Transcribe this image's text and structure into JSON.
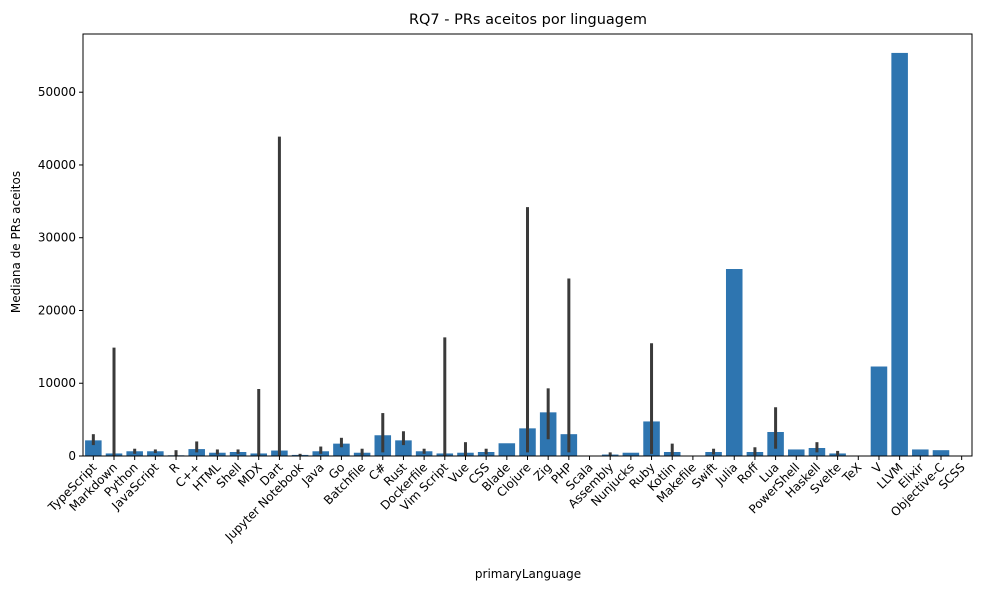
{
  "chart_data": {
    "type": "bar",
    "title": "RQ7 - PRs aceitos por linguagem",
    "xlabel": "primaryLanguage",
    "ylabel": "Mediana de PRs aceitos",
    "ylim": [
      0,
      58000
    ],
    "yticks": [
      0,
      10000,
      20000,
      30000,
      40000,
      50000
    ],
    "bar_color": "#2e75b0",
    "errorbar_color": "#3a3a3a",
    "grid": false,
    "legend": "none",
    "categories": [
      "TypeScript",
      "Markdown",
      "Python",
      "JavaScript",
      "R",
      "C++",
      "HTML",
      "Shell",
      "MDX",
      "Dart",
      "Jupyter Notebook",
      "Java",
      "Go",
      "Batchfile",
      "C#",
      "Rust",
      "Dockerfile",
      "Vim Script",
      "Vue",
      "CSS",
      "Blade",
      "Clojure",
      "Zig",
      "PHP",
      "Scala",
      "Assembly",
      "Nunjucks",
      "Ruby",
      "Kotlin",
      "Makefile",
      "Swift",
      "Julia",
      "Roff",
      "Lua",
      "PowerShell",
      "Haskell",
      "Svelte",
      "TeX",
      "V",
      "LLVM",
      "Elixir",
      "Objective-C",
      "SCSS"
    ],
    "values": [
      2150,
      350,
      650,
      650,
      100,
      950,
      450,
      550,
      350,
      750,
      150,
      650,
      1700,
      450,
      2850,
      2150,
      650,
      350,
      450,
      550,
      1750,
      3800,
      6000,
      3000,
      50,
      200,
      450,
      4750,
      550,
      50,
      550,
      25700,
      550,
      3300,
      900,
      1100,
      350,
      50,
      12300,
      55400,
      900,
      800,
      50
    ],
    "error_low": [
      1500,
      0,
      300,
      400,
      0,
      500,
      200,
      300,
      0,
      0,
      0,
      300,
      1200,
      100,
      500,
      1500,
      300,
      0,
      0,
      200,
      1750,
      500,
      2300,
      500,
      50,
      0,
      450,
      300,
      100,
      50,
      200,
      25700,
      100,
      1000,
      900,
      500,
      100,
      50,
      12300,
      55400,
      900,
      800,
      50
    ],
    "error_high": [
      3000,
      14900,
      1000,
      900,
      800,
      2000,
      900,
      900,
      9200,
      43900,
      300,
      1300,
      2500,
      1000,
      5900,
      3400,
      1000,
      16300,
      1900,
      1000,
      1750,
      34200,
      9300,
      24400,
      50,
      500,
      450,
      15500,
      1700,
      50,
      1000,
      25700,
      1200,
      6700,
      900,
      1900,
      700,
      50,
      12300,
      55400,
      900,
      800,
      50
    ]
  }
}
